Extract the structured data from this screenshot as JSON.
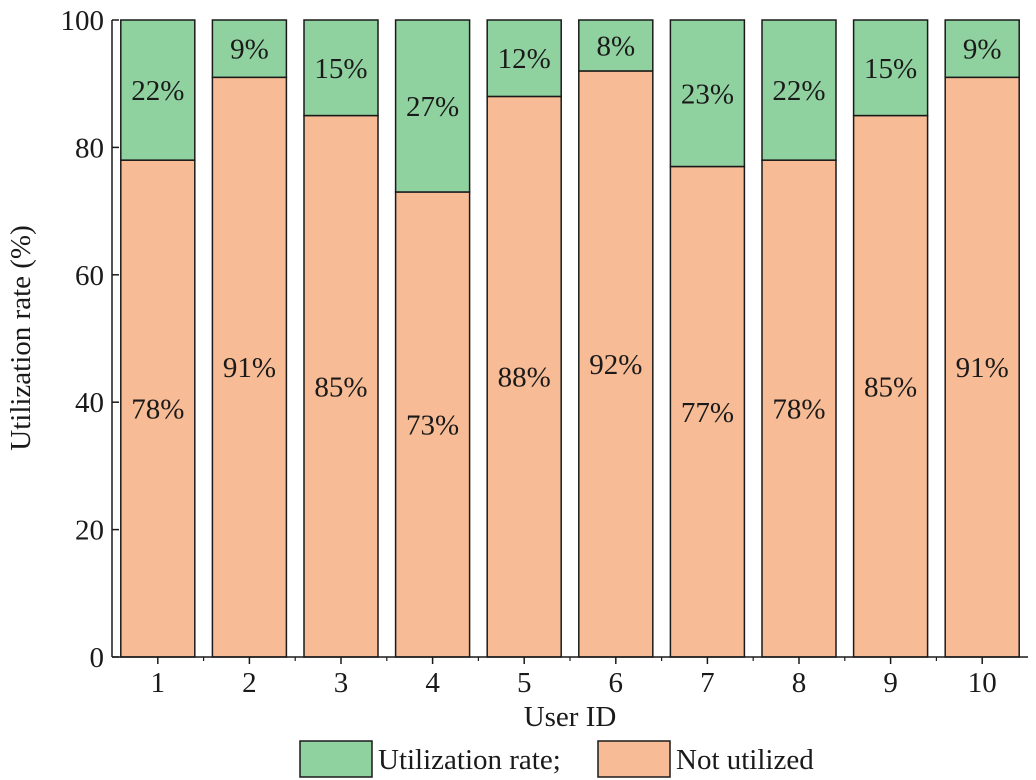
{
  "chart_data": {
    "type": "bar",
    "stacked": true,
    "categories": [
      "1",
      "2",
      "3",
      "4",
      "5",
      "6",
      "7",
      "8",
      "9",
      "10"
    ],
    "series": [
      {
        "name": "Not utilized",
        "values": [
          78,
          91,
          85,
          73,
          88,
          92,
          77,
          78,
          85,
          91
        ],
        "labels": [
          "78%",
          "91%",
          "85%",
          "73%",
          "88%",
          "92%",
          "77%",
          "78%",
          "85%",
          "91%"
        ],
        "color": "#F7BB95"
      },
      {
        "name": "Utilization rate;",
        "values": [
          22,
          9,
          15,
          27,
          12,
          8,
          23,
          22,
          15,
          9
        ],
        "labels": [
          "22%",
          "9%",
          "15%",
          "27%",
          "12%",
          "8%",
          "23%",
          "22%",
          "15%",
          "9%"
        ],
        "color": "#90D1A0"
      }
    ],
    "xlabel": "User ID",
    "ylabel": "Utilization rate (%)",
    "ylim": [
      0,
      100
    ],
    "yticks": [
      0,
      20,
      40,
      60,
      80,
      100
    ],
    "grid": false,
    "legend": {
      "position": "bottom",
      "order": [
        "Utilization rate;",
        "Not utilized"
      ]
    }
  }
}
